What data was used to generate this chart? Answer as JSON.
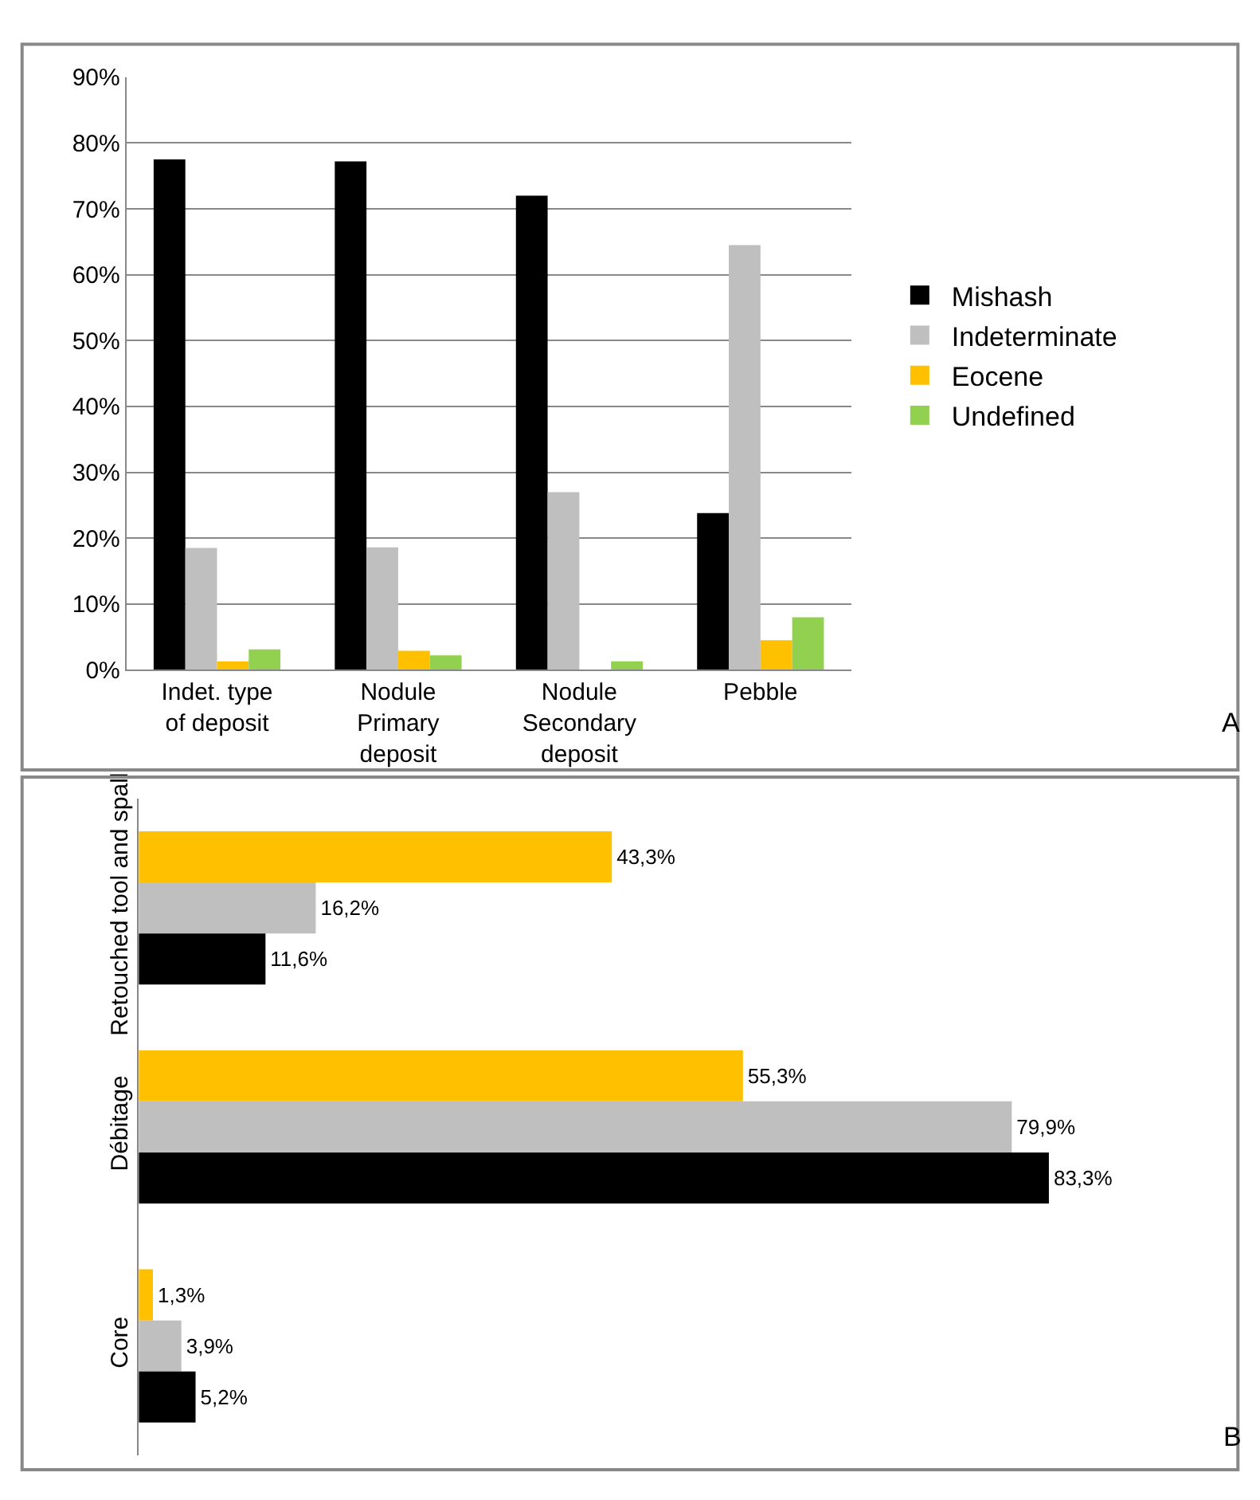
{
  "chart_data": [
    {
      "type": "bar",
      "categories": [
        "Indet. type of deposit",
        "Nodule Primary deposit",
        "Nodule Secondary deposit",
        "Pebble"
      ],
      "series": [
        {
          "name": "Mishash",
          "color": "#000000",
          "values": [
            77.5,
            77.2,
            72.0,
            23.8
          ]
        },
        {
          "name": "Indeterminate",
          "color": "#bfbfbf",
          "values": [
            18.5,
            18.6,
            27.0,
            64.5
          ]
        },
        {
          "name": "Eocene",
          "color": "#ffc000",
          "values": [
            1.3,
            2.9,
            0,
            4.5
          ]
        },
        {
          "name": "Undefined",
          "color": "#92d050",
          "values": [
            3.1,
            2.2,
            1.3,
            8.0
          ]
        }
      ],
      "ylim": [
        0,
        90
      ],
      "yticks": [
        {
          "value": 0,
          "label": "0%"
        },
        {
          "value": 10,
          "label": "10%"
        },
        {
          "value": 20,
          "label": "20%"
        },
        {
          "value": 30,
          "label": "30%"
        },
        {
          "value": 40,
          "label": "40%"
        },
        {
          "value": 50,
          "label": "50%"
        },
        {
          "value": 60,
          "label": "60%"
        },
        {
          "value": 70,
          "label": "70%"
        },
        {
          "value": 80,
          "label": "80%"
        },
        {
          "value": 90,
          "label": "90%"
        }
      ],
      "grid": "y",
      "legend": "right",
      "annotations": [
        "A"
      ]
    },
    {
      "type": "bar",
      "orientation": "horizontal",
      "categories": [
        "Retouched tool and spall",
        "Débitage",
        "Core"
      ],
      "series": [
        {
          "color": "#ffc000",
          "values": [
            43.3,
            55.3,
            1.3
          ],
          "value_labels": [
            "43,3%",
            "55,3%",
            "1,3%"
          ]
        },
        {
          "color": "#bfbfbf",
          "values": [
            16.2,
            79.9,
            3.9
          ],
          "value_labels": [
            "16,2%",
            "79,9%",
            "3,9%"
          ]
        },
        {
          "color": "#000000",
          "values": [
            11.6,
            83.3,
            5.2
          ],
          "value_labels": [
            "11,6%",
            "83,3%",
            "5,2%"
          ]
        }
      ],
      "tick_labels": "y",
      "annotations": [
        "B"
      ]
    }
  ]
}
